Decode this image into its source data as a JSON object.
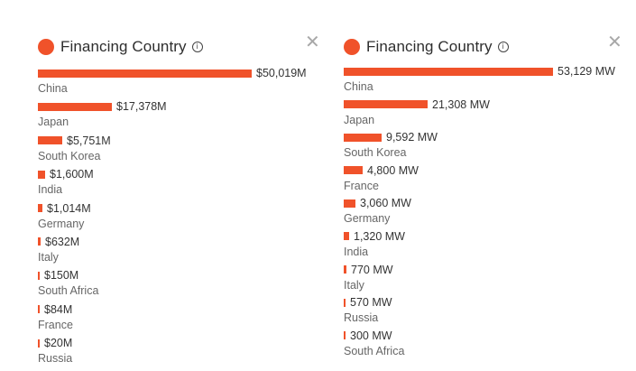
{
  "panels": [
    {
      "title": "Financing Country",
      "info_icon": "info-icon",
      "close_icon": "close-icon",
      "accent_color": "#f0522a",
      "max": 50019,
      "items": [
        {
          "label": "China",
          "value": 50019,
          "display": "$50,019M"
        },
        {
          "label": "Japan",
          "value": 17378,
          "display": "$17,378M"
        },
        {
          "label": "South Korea",
          "value": 5751,
          "display": "$5,751M"
        },
        {
          "label": "India",
          "value": 1600,
          "display": "$1,600M"
        },
        {
          "label": "Germany",
          "value": 1014,
          "display": "$1,014M"
        },
        {
          "label": "Italy",
          "value": 632,
          "display": "$632M"
        },
        {
          "label": "South Africa",
          "value": 150,
          "display": "$150M"
        },
        {
          "label": "France",
          "value": 84,
          "display": "$84M"
        },
        {
          "label": "Russia",
          "value": 20,
          "display": "$20M"
        }
      ]
    },
    {
      "title": "Financing Country",
      "info_icon": "info-icon",
      "close_icon": "close-icon",
      "accent_color": "#f0522a",
      "max": 53129,
      "items": [
        {
          "label": "China",
          "value": 53129,
          "display": "53,129 MW"
        },
        {
          "label": "Japan",
          "value": 21308,
          "display": "21,308 MW"
        },
        {
          "label": "South Korea",
          "value": 9592,
          "display": "9,592 MW"
        },
        {
          "label": "France",
          "value": 4800,
          "display": "4,800 MW"
        },
        {
          "label": "Germany",
          "value": 3060,
          "display": "3,060 MW"
        },
        {
          "label": "India",
          "value": 1320,
          "display": "1,320 MW"
        },
        {
          "label": "Italy",
          "value": 770,
          "display": "770 MW"
        },
        {
          "label": "Russia",
          "value": 570,
          "display": "570 MW"
        },
        {
          "label": "South Africa",
          "value": 300,
          "display": "300 MW"
        }
      ]
    }
  ]
}
